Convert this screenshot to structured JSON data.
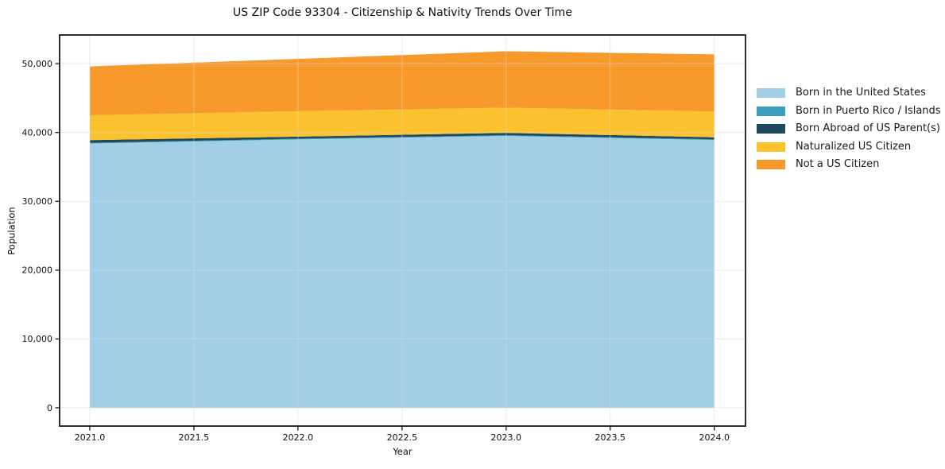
{
  "chart_data": {
    "type": "area",
    "stacked": true,
    "title": "US ZIP Code 93304 - Citizenship & Nativity Trends Over Time",
    "xlabel": "Year",
    "ylabel": "Population",
    "x": [
      2021,
      2022,
      2023,
      2024
    ],
    "series": [
      {
        "name": "Born in the United States",
        "color": "#a3cfe6",
        "values": [
          38400,
          39000,
          39500,
          38900
        ]
      },
      {
        "name": "Born in Puerto Rico / Islands",
        "color": "#3d9ebd",
        "values": [
          100,
          100,
          100,
          100
        ]
      },
      {
        "name": "Born Abroad of US Parent(s)",
        "color": "#1f4a5c",
        "values": [
          400,
          300,
          350,
          300
        ]
      },
      {
        "name": "Naturalized US Citizen",
        "color": "#fcc22d",
        "values": [
          3600,
          3700,
          3650,
          3750
        ]
      },
      {
        "name": "Not a US Citizen",
        "color": "#f8992c",
        "values": [
          7100,
          7600,
          8200,
          8300
        ]
      }
    ],
    "xticks": {
      "values": [
        2021.0,
        2021.5,
        2022.0,
        2022.5,
        2023.0,
        2023.5,
        2024.0
      ],
      "labels": [
        "2021.0",
        "2021.5",
        "2022.0",
        "2022.5",
        "2023.0",
        "2023.5",
        "2024.0"
      ]
    },
    "yticks": {
      "values": [
        0,
        10000,
        20000,
        30000,
        40000,
        50000
      ],
      "labels": [
        "0",
        "10,000",
        "20,000",
        "30,000",
        "40,000",
        "50,000"
      ]
    },
    "xlim": [
      2020.855,
      2024.15
    ],
    "ylim": [
      -2656,
      54170
    ],
    "grid": true,
    "legend_position": "right"
  }
}
